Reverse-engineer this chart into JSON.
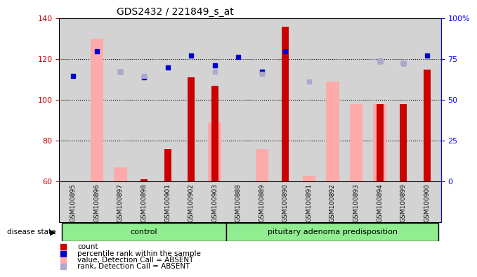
{
  "title": "GDS2432 / 221849_s_at",
  "samples": [
    "GSM100895",
    "GSM100896",
    "GSM100897",
    "GSM100898",
    "GSM100901",
    "GSM100902",
    "GSM100903",
    "GSM100888",
    "GSM100889",
    "GSM100890",
    "GSM100891",
    "GSM100892",
    "GSM100893",
    "GSM100894",
    "GSM100899",
    "GSM100900"
  ],
  "control_count": 7,
  "group1_label": "control",
  "group2_label": "pituitary adenoma predisposition",
  "ylim": [
    60,
    140
  ],
  "yticks": [
    60,
    80,
    100,
    120,
    140
  ],
  "right_yticks": [
    0,
    25,
    50,
    75,
    100
  ],
  "right_yticklabels": [
    "0",
    "25",
    "50",
    "75",
    "100%"
  ],
  "count_values": [
    60,
    60,
    60,
    61,
    76,
    111,
    107,
    60,
    60,
    136,
    60,
    60,
    60,
    98,
    98,
    115
  ],
  "absent_value_values": [
    0,
    130,
    67,
    0,
    0,
    0,
    89,
    0,
    76,
    0,
    63,
    109,
    98,
    98,
    0,
    0
  ],
  "percentile_rank_values": [
    112,
    124,
    114,
    111,
    116,
    122,
    117,
    121,
    114,
    124,
    0,
    0,
    0,
    119,
    118,
    122
  ],
  "absent_rank_values": [
    0,
    0,
    114,
    112,
    0,
    0,
    114,
    0,
    113,
    0,
    109,
    0,
    0,
    119,
    118,
    0
  ],
  "count_color": "#cc0000",
  "absent_value_color": "#ffaaaa",
  "percentile_rank_color": "#0000cc",
  "absent_rank_color": "#aaaacc",
  "bg_color": "#d3d3d3",
  "control_bg": "#90ee90",
  "disease_bg": "#90ee90",
  "legend_items": [
    {
      "label": "count",
      "color": "#cc0000"
    },
    {
      "label": "percentile rank within the sample",
      "color": "#0000cc"
    },
    {
      "label": "value, Detection Call = ABSENT",
      "color": "#ffaaaa"
    },
    {
      "label": "rank, Detection Call = ABSENT",
      "color": "#aaaacc"
    }
  ]
}
